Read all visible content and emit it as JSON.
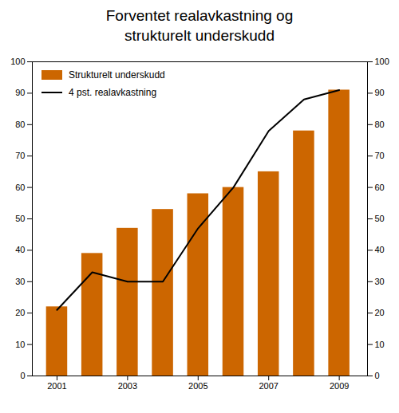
{
  "chart_data": {
    "type": "bar",
    "title": "Forventet realavkastning og\nstrukturelt underskudd",
    "x": [
      2001,
      2002,
      2003,
      2004,
      2005,
      2006,
      2007,
      2008,
      2009
    ],
    "series": [
      {
        "name": "Strukturelt underskudd",
        "type": "bar",
        "color": "#CC6600",
        "values": [
          22,
          39,
          47,
          53,
          58,
          60,
          65,
          78,
          91
        ]
      },
      {
        "name": "4 pst. realavkastning",
        "type": "line",
        "color": "#000000",
        "axis": "y2",
        "values": [
          21,
          33,
          30,
          30,
          47,
          60,
          78,
          88,
          91
        ]
      }
    ],
    "xlim": [
      2000.3,
      2009.8
    ],
    "xticks": [
      2001,
      2003,
      2005,
      2007,
      2009
    ],
    "ylim": [
      0,
      100
    ],
    "yticks": [
      0,
      10,
      20,
      30,
      40,
      50,
      60,
      70,
      80,
      90,
      100
    ],
    "y2lim": [
      0,
      100
    ],
    "y2ticks": [
      0,
      10,
      20,
      30,
      40,
      50,
      60,
      70,
      80,
      90,
      100
    ],
    "legend": "upper left"
  }
}
